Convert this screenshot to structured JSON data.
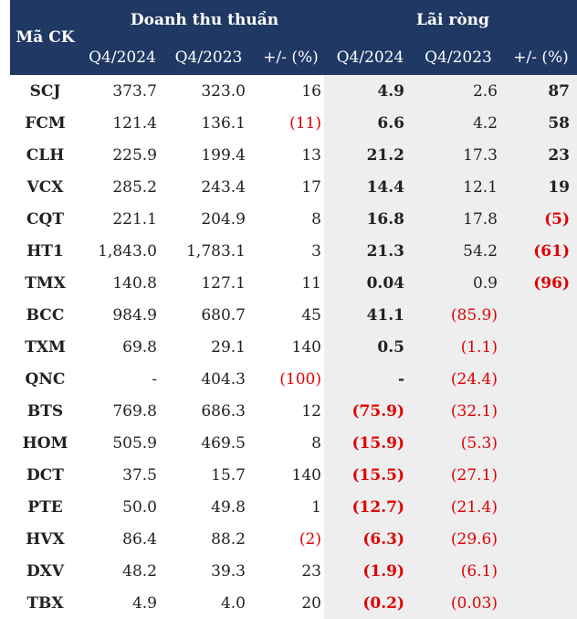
{
  "header": {
    "ticker": "Mã CK",
    "revenue_group": "Doanh thu thuần",
    "profit_group": "Lãi ròng",
    "q4_2024": "Q4/2024",
    "q4_2023": "Q4/2023",
    "change": "+/- (%)"
  },
  "rows": [
    {
      "ticker": "SCJ",
      "rev_2024": "373.7",
      "rev_2023": "323.0",
      "rev_chg": "16",
      "np_2024": "4.9",
      "np_2023": "2.6",
      "np_chg": "87"
    },
    {
      "ticker": "FCM",
      "rev_2024": "121.4",
      "rev_2023": "136.1",
      "rev_chg": "(11)",
      "np_2024": "6.6",
      "np_2023": "4.2",
      "np_chg": "58"
    },
    {
      "ticker": "CLH",
      "rev_2024": "225.9",
      "rev_2023": "199.4",
      "rev_chg": "13",
      "np_2024": "21.2",
      "np_2023": "17.3",
      "np_chg": "23"
    },
    {
      "ticker": "VCX",
      "rev_2024": "285.2",
      "rev_2023": "243.4",
      "rev_chg": "17",
      "np_2024": "14.4",
      "np_2023": "12.1",
      "np_chg": "19"
    },
    {
      "ticker": "CQT",
      "rev_2024": "221.1",
      "rev_2023": "204.9",
      "rev_chg": "8",
      "np_2024": "16.8",
      "np_2023": "17.8",
      "np_chg": "(5)"
    },
    {
      "ticker": "HT1",
      "rev_2024": "1,843.0",
      "rev_2023": "1,783.1",
      "rev_chg": "3",
      "np_2024": "21.3",
      "np_2023": "54.2",
      "np_chg": "(61)"
    },
    {
      "ticker": "TMX",
      "rev_2024": "140.8",
      "rev_2023": "127.1",
      "rev_chg": "11",
      "np_2024": "0.04",
      "np_2023": "0.9",
      "np_chg": "(96)"
    },
    {
      "ticker": "BCC",
      "rev_2024": "984.9",
      "rev_2023": "680.7",
      "rev_chg": "45",
      "np_2024": "41.1",
      "np_2023": "(85.9)",
      "np_chg": ""
    },
    {
      "ticker": "TXM",
      "rev_2024": "69.8",
      "rev_2023": "29.1",
      "rev_chg": "140",
      "np_2024": "0.5",
      "np_2023": "(1.1)",
      "np_chg": ""
    },
    {
      "ticker": "QNC",
      "rev_2024": "-",
      "rev_2023": "404.3",
      "rev_chg": "(100)",
      "np_2024": "-",
      "np_2023": "(24.4)",
      "np_chg": ""
    },
    {
      "ticker": "BTS",
      "rev_2024": "769.8",
      "rev_2023": "686.3",
      "rev_chg": "12",
      "np_2024": "(75.9)",
      "np_2023": "(32.1)",
      "np_chg": ""
    },
    {
      "ticker": "HOM",
      "rev_2024": "505.9",
      "rev_2023": "469.5",
      "rev_chg": "8",
      "np_2024": "(15.9)",
      "np_2023": "(5.3)",
      "np_chg": ""
    },
    {
      "ticker": "DCT",
      "rev_2024": "37.5",
      "rev_2023": "15.7",
      "rev_chg": "140",
      "np_2024": "(15.5)",
      "np_2023": "(27.1)",
      "np_chg": ""
    },
    {
      "ticker": "PTE",
      "rev_2024": "50.0",
      "rev_2023": "49.8",
      "rev_chg": "1",
      "np_2024": "(12.7)",
      "np_2023": "(21.4)",
      "np_chg": ""
    },
    {
      "ticker": "HVX",
      "rev_2024": "86.4",
      "rev_2023": "88.2",
      "rev_chg": "(2)",
      "np_2024": "(6.3)",
      "np_2023": "(29.6)",
      "np_chg": ""
    },
    {
      "ticker": "DXV",
      "rev_2024": "48.2",
      "rev_2023": "39.3",
      "rev_chg": "23",
      "np_2024": "(1.9)",
      "np_2023": "(6.1)",
      "np_chg": ""
    },
    {
      "ticker": "TBX",
      "rev_2024": "4.9",
      "rev_2023": "4.0",
      "rev_chg": "20",
      "np_2024": "(0.2)",
      "np_2023": "(0.03)",
      "np_chg": ""
    }
  ],
  "colors": {
    "header_bg": "#1f3864",
    "header_text": "#ffffff",
    "negative": "#e00000",
    "profit_panel_bg": "#eeeeee"
  }
}
